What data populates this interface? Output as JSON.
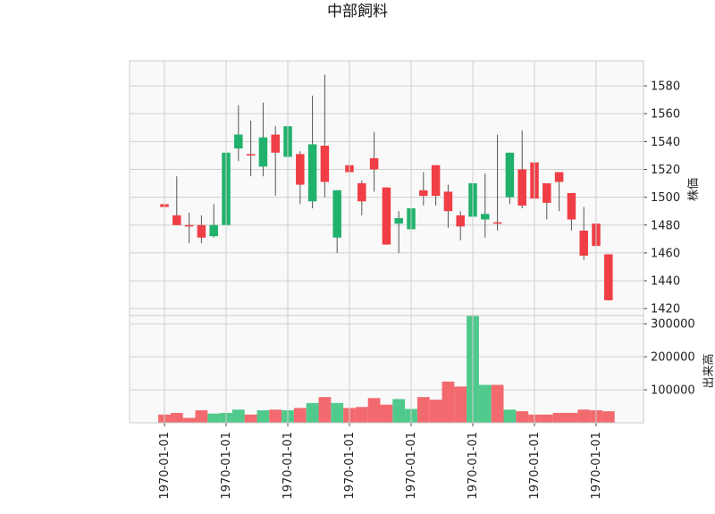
{
  "chart_data": {
    "type": "candlestick",
    "title": "中部飼料",
    "x_tick_labels": [
      "1970-01-01",
      "1970-01-01",
      "1970-01-01",
      "1970-01-01",
      "1970-01-01",
      "1970-01-01",
      "1970-01-01",
      "1970-01-01"
    ],
    "x_tick_indices": [
      0,
      5,
      10,
      15,
      20,
      25,
      30,
      35
    ],
    "price_panel": {
      "ylabel": "株価",
      "ylim": [
        1415,
        1598
      ],
      "yticks": [
        1420,
        1440,
        1460,
        1480,
        1500,
        1520,
        1540,
        1560,
        1580
      ]
    },
    "volume_panel": {
      "ylabel": "出来高",
      "ylim": [
        0,
        325000
      ],
      "yticks": [
        100000,
        200000,
        300000
      ],
      "ytick_labels": [
        "100000",
        "200000",
        "300000"
      ]
    },
    "candles": [
      {
        "open": 1495,
        "close": 1493,
        "high": 1503,
        "low": 1462,
        "volume": 25000
      },
      {
        "open": 1487,
        "close": 1480,
        "high": 1515,
        "low": 1480,
        "volume": 30000
      },
      {
        "open": 1480,
        "close": 1479,
        "high": 1489,
        "low": 1467,
        "volume": 15000
      },
      {
        "open": 1480,
        "close": 1471,
        "high": 1487,
        "low": 1467,
        "volume": 38000
      },
      {
        "open": 1472,
        "close": 1480,
        "high": 1495,
        "low": 1471,
        "volume": 28000
      },
      {
        "open": 1480,
        "close": 1532,
        "high": 1532,
        "low": 1479,
        "volume": 30000
      },
      {
        "open": 1535,
        "close": 1545,
        "high": 1566,
        "low": 1526,
        "volume": 40000
      },
      {
        "open": 1531,
        "close": 1530,
        "high": 1555,
        "low": 1515,
        "volume": 25000
      },
      {
        "open": 1522,
        "close": 1543,
        "high": 1568,
        "low": 1515,
        "volume": 38000
      },
      {
        "open": 1545,
        "close": 1532,
        "high": 1551,
        "low": 1501,
        "volume": 40000
      },
      {
        "open": 1529,
        "close": 1551,
        "high": 1561,
        "low": 1521,
        "volume": 38000
      },
      {
        "open": 1531,
        "close": 1509,
        "high": 1533,
        "low": 1495,
        "volume": 45000
      },
      {
        "open": 1497,
        "close": 1538,
        "high": 1573,
        "low": 1492,
        "volume": 60000
      },
      {
        "open": 1537,
        "close": 1511,
        "high": 1588,
        "low": 1500,
        "volume": 78000
      },
      {
        "open": 1471,
        "close": 1505,
        "high": 1505,
        "low": 1460,
        "volume": 60000
      },
      {
        "open": 1523,
        "close": 1518,
        "high": 1528,
        "low": 1513,
        "volume": 45000
      },
      {
        "open": 1510,
        "close": 1497,
        "high": 1512,
        "low": 1487,
        "volume": 48000
      },
      {
        "open": 1528,
        "close": 1520,
        "high": 1547,
        "low": 1504,
        "volume": 75000
      },
      {
        "open": 1507,
        "close": 1466,
        "high": 1507,
        "low": 1466,
        "volume": 55000
      },
      {
        "open": 1481,
        "close": 1485,
        "high": 1490,
        "low": 1460,
        "volume": 72000
      },
      {
        "open": 1477,
        "close": 1492,
        "high": 1492,
        "low": 1467,
        "volume": 42000
      },
      {
        "open": 1505,
        "close": 1501,
        "high": 1518,
        "low": 1494,
        "volume": 78000
      },
      {
        "open": 1523,
        "close": 1501,
        "high": 1523,
        "low": 1494,
        "volume": 70000
      },
      {
        "open": 1504,
        "close": 1490,
        "high": 1509,
        "low": 1478,
        "volume": 125000
      },
      {
        "open": 1487,
        "close": 1479,
        "high": 1490,
        "low": 1469,
        "volume": 110000
      },
      {
        "open": 1486,
        "close": 1510,
        "high": 1522,
        "low": 1483,
        "volume": 325000
      },
      {
        "open": 1484,
        "close": 1488,
        "high": 1517,
        "low": 1471,
        "volume": 115000
      },
      {
        "open": 1482,
        "close": 1481,
        "high": 1545,
        "low": 1476,
        "volume": 115000
      },
      {
        "open": 1500,
        "close": 1532,
        "high": 1532,
        "low": 1495,
        "volume": 40000
      },
      {
        "open": 1520,
        "close": 1494,
        "high": 1548,
        "low": 1492,
        "volume": 35000
      },
      {
        "open": 1525,
        "close": 1499,
        "high": 1529,
        "low": 1481,
        "volume": 25000
      },
      {
        "open": 1510,
        "close": 1496,
        "high": 1510,
        "low": 1484,
        "volume": 25000
      },
      {
        "open": 1518,
        "close": 1511,
        "high": 1518,
        "low": 1490,
        "volume": 30000
      },
      {
        "open": 1503,
        "close": 1484,
        "high": 1503,
        "low": 1476,
        "volume": 30000
      },
      {
        "open": 1476,
        "close": 1458,
        "high": 1493,
        "low": 1455,
        "volume": 40000
      },
      {
        "open": 1481,
        "close": 1465,
        "high": 1481,
        "low": 1444,
        "volume": 38000
      },
      {
        "open": 1459,
        "close": 1426,
        "high": 1459,
        "low": 1426,
        "volume": 35000
      }
    ],
    "up_color": "#20b26c",
    "down_color": "#ef3e45",
    "volume_up_color": "#50c98c",
    "volume_down_color": "#f26a6e",
    "wick_color": "#555555",
    "grid": true,
    "background": "#f9f9f9"
  }
}
